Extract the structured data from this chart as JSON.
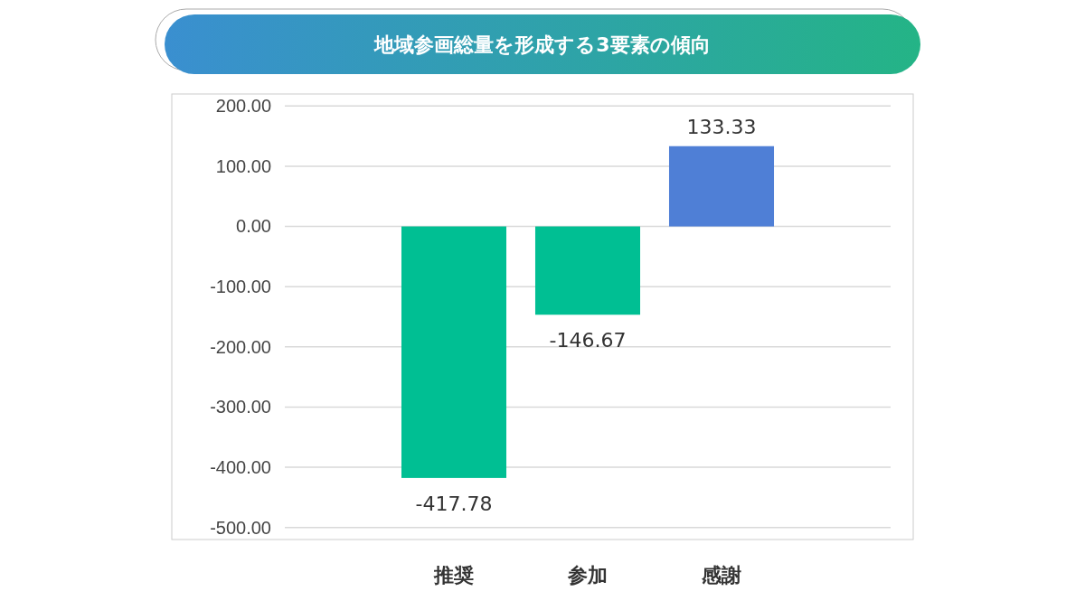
{
  "chart_data": {
    "type": "bar",
    "title": "地域参画総量を形成する3要素の傾向",
    "categories": [
      "推奨",
      "参加",
      "感謝"
    ],
    "values": [
      -417.78,
      -146.67,
      133.33
    ],
    "colors": [
      "#00bf93",
      "#00bf93",
      "#4f7fd6"
    ],
    "ylim": [
      -520,
      220
    ],
    "yticks": [
      {
        "value": -500,
        "label": "-500.00"
      },
      {
        "value": -400,
        "label": "-400.00"
      },
      {
        "value": -300,
        "label": "-300.00"
      },
      {
        "value": -200,
        "label": "-200.00"
      },
      {
        "value": -100,
        "label": "-100.00"
      },
      {
        "value": 0,
        "label": "0.00"
      },
      {
        "value": 100,
        "label": "100.00"
      },
      {
        "value": 200,
        "label": "200.00"
      }
    ],
    "grid": "y",
    "data_labels": true
  }
}
